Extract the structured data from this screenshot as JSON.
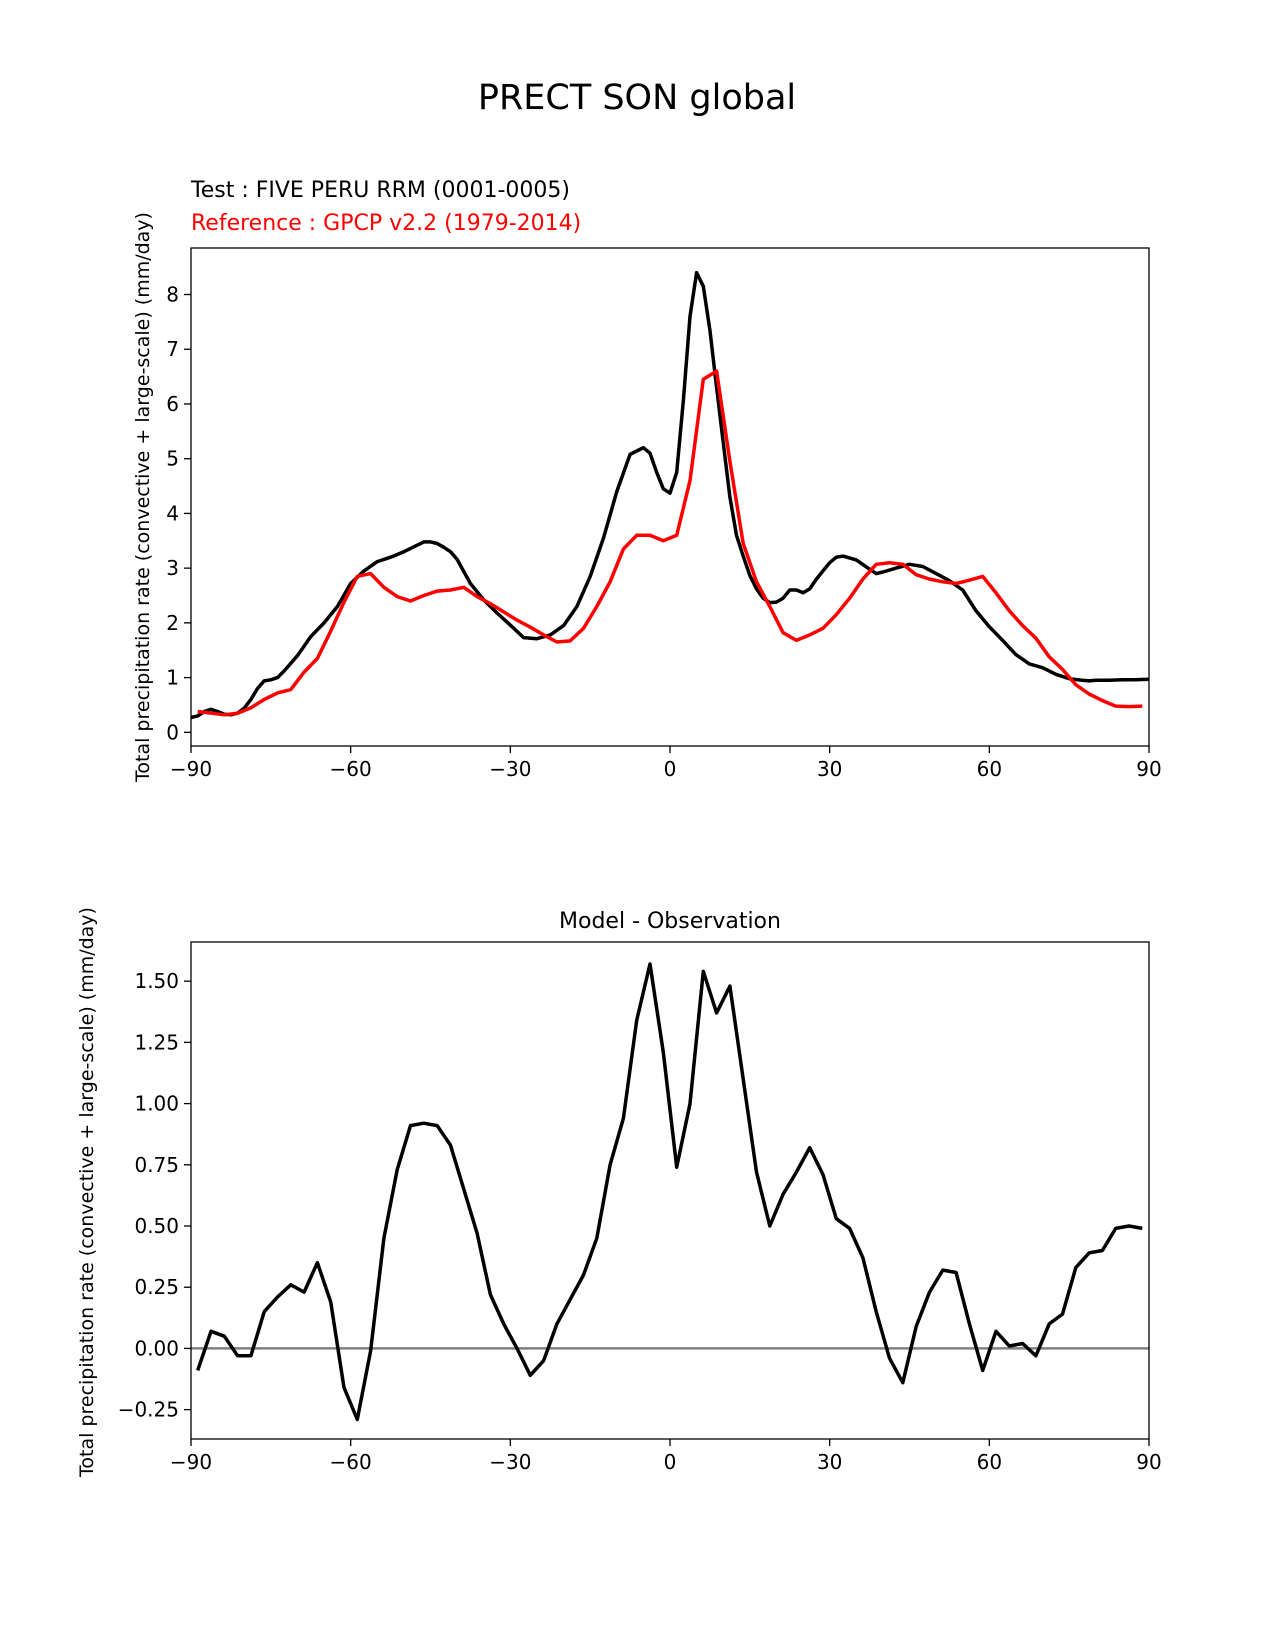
{
  "figure_title": "PRECT SON global",
  "chart_data": [
    {
      "type": "line",
      "test_label": "Test : FIVE PERU RRM (0001-0005)",
      "reference_label": "Reference : GPCP v2.2 (1979-2014)",
      "ylabel": "Total precipitation rate (convective + large-scale) (mm/day)",
      "xlim": [
        -90,
        90
      ],
      "ylim": [
        -0.25,
        8.85
      ],
      "xticks": [
        -90,
        -60,
        -30,
        0,
        30,
        60,
        90
      ],
      "xtick_labels": [
        "−90",
        "−60",
        "−30",
        "0",
        "30",
        "60",
        "90"
      ],
      "yticks": [
        0,
        1,
        2,
        3,
        4,
        5,
        6,
        7,
        8
      ],
      "ytick_labels": [
        "0",
        "1",
        "2",
        "3",
        "4",
        "5",
        "6",
        "7",
        "8"
      ],
      "series": [
        {
          "name": "Test : FIVE PERU RRM (0001-0005)",
          "color": "#000000",
          "x": [
            -90,
            -88.75,
            -87.5,
            -86.25,
            -85,
            -83.75,
            -82.5,
            -81.25,
            -80,
            -78.75,
            -77.5,
            -76.25,
            -75,
            -73.75,
            -72.5,
            -70,
            -67.5,
            -65,
            -62.5,
            -60,
            -57.5,
            -55,
            -52.5,
            -50,
            -47.5,
            -46.25,
            -45,
            -43.75,
            -42.5,
            -41.25,
            -40,
            -37.5,
            -35,
            -32.5,
            -30,
            -27.5,
            -25,
            -22.5,
            -20,
            -17.5,
            -15,
            -12.5,
            -10,
            -7.5,
            -5,
            -3.75,
            -2.5,
            -1.25,
            0,
            1.25,
            2.5,
            3.75,
            5,
            6.25,
            7.5,
            8.75,
            10,
            11.25,
            12.5,
            13.75,
            15,
            16.25,
            17.5,
            18.75,
            20,
            21.25,
            22.5,
            23.75,
            25,
            26.25,
            27.5,
            28.75,
            30,
            31.25,
            32.5,
            35,
            37.5,
            38.75,
            40,
            42.5,
            45,
            47.5,
            50,
            52.5,
            55,
            57.5,
            60,
            62.5,
            65,
            67.5,
            70,
            72.5,
            75,
            77.5,
            78.75,
            80,
            82.5,
            85,
            87.5,
            90
          ],
          "values": [
            0.27,
            0.3,
            0.38,
            0.42,
            0.38,
            0.33,
            0.32,
            0.35,
            0.44,
            0.6,
            0.8,
            0.94,
            0.96,
            1.0,
            1.12,
            1.4,
            1.75,
            2.0,
            2.3,
            2.72,
            2.95,
            3.12,
            3.2,
            3.3,
            3.42,
            3.48,
            3.48,
            3.45,
            3.38,
            3.3,
            3.16,
            2.72,
            2.42,
            2.18,
            1.96,
            1.73,
            1.71,
            1.78,
            1.95,
            2.3,
            2.85,
            3.55,
            4.4,
            5.08,
            5.2,
            5.1,
            4.75,
            4.45,
            4.37,
            4.75,
            6.05,
            7.6,
            8.4,
            8.15,
            7.35,
            6.3,
            5.3,
            4.3,
            3.6,
            3.22,
            2.87,
            2.62,
            2.45,
            2.37,
            2.38,
            2.45,
            2.6,
            2.6,
            2.55,
            2.62,
            2.8,
            2.95,
            3.1,
            3.2,
            3.22,
            3.15,
            2.98,
            2.9,
            2.93,
            3.0,
            3.07,
            3.03,
            2.9,
            2.77,
            2.6,
            2.22,
            1.93,
            1.68,
            1.42,
            1.25,
            1.18,
            1.06,
            0.98,
            0.95,
            0.94,
            0.95,
            0.95,
            0.96,
            0.96,
            0.97
          ]
        },
        {
          "name": "Reference : GPCP v2.2 (1979-2014)",
          "color": "#ff0000",
          "x": [
            -88.75,
            -86.25,
            -83.75,
            -81.25,
            -78.75,
            -76.25,
            -73.75,
            -71.25,
            -68.75,
            -66.25,
            -63.75,
            -61.25,
            -58.75,
            -56.25,
            -53.75,
            -51.25,
            -48.75,
            -46.25,
            -43.75,
            -41.25,
            -38.75,
            -36.25,
            -33.75,
            -31.25,
            -28.75,
            -26.25,
            -23.75,
            -21.25,
            -18.75,
            -16.25,
            -13.75,
            -11.25,
            -8.75,
            -6.25,
            -3.75,
            -1.25,
            1.25,
            3.75,
            6.25,
            8.75,
            11.25,
            13.75,
            16.25,
            18.75,
            21.25,
            23.75,
            26.25,
            28.75,
            31.25,
            33.75,
            36.25,
            38.75,
            41.25,
            43.75,
            46.25,
            48.75,
            51.25,
            53.75,
            56.25,
            58.75,
            61.25,
            63.75,
            66.25,
            68.75,
            71.25,
            73.75,
            76.25,
            78.75,
            81.25,
            83.75,
            86.25,
            88.75
          ],
          "values": [
            0.38,
            0.35,
            0.32,
            0.35,
            0.45,
            0.6,
            0.72,
            0.78,
            1.1,
            1.35,
            1.85,
            2.38,
            2.85,
            2.9,
            2.65,
            2.48,
            2.4,
            2.5,
            2.58,
            2.6,
            2.65,
            2.48,
            2.35,
            2.2,
            2.05,
            1.92,
            1.78,
            1.65,
            1.67,
            1.9,
            2.3,
            2.75,
            3.35,
            3.6,
            3.6,
            3.5,
            3.6,
            4.6,
            6.45,
            6.6,
            4.95,
            3.45,
            2.75,
            2.3,
            1.82,
            1.68,
            1.78,
            1.9,
            2.15,
            2.45,
            2.8,
            3.07,
            3.1,
            3.07,
            2.88,
            2.8,
            2.75,
            2.72,
            2.78,
            2.85,
            2.55,
            2.22,
            1.95,
            1.72,
            1.38,
            1.15,
            0.87,
            0.7,
            0.58,
            0.48,
            0.47,
            0.48
          ]
        }
      ]
    },
    {
      "type": "line",
      "title": "Model - Observation",
      "ylabel": "Total precipitation rate (convective + large-scale) (mm/day)",
      "xlim": [
        -90,
        90
      ],
      "ylim": [
        -0.37,
        1.66
      ],
      "xticks": [
        -90,
        -60,
        -30,
        0,
        30,
        60,
        90
      ],
      "xtick_labels": [
        "−90",
        "−60",
        "−30",
        "0",
        "30",
        "60",
        "90"
      ],
      "yticks": [
        -0.25,
        0,
        0.25,
        0.5,
        0.75,
        1.0,
        1.25,
        1.5
      ],
      "ytick_labels": [
        "−0.25",
        "0.00",
        "0.25",
        "0.50",
        "0.75",
        "1.00",
        "1.25",
        "1.50"
      ],
      "zero_line": 0,
      "series": [
        {
          "name": "Model - Observation",
          "color": "#000000",
          "x": [
            -88.75,
            -86.25,
            -83.75,
            -81.25,
            -78.75,
            -76.25,
            -73.75,
            -71.25,
            -68.75,
            -66.25,
            -63.75,
            -61.25,
            -58.75,
            -56.25,
            -53.75,
            -51.25,
            -48.75,
            -46.25,
            -43.75,
            -41.25,
            -38.75,
            -36.25,
            -33.75,
            -31.25,
            -28.75,
            -26.25,
            -23.75,
            -21.25,
            -18.75,
            -16.25,
            -13.75,
            -11.25,
            -8.75,
            -6.25,
            -3.75,
            -1.25,
            1.25,
            3.75,
            6.25,
            8.75,
            11.25,
            13.75,
            16.25,
            18.75,
            21.25,
            23.75,
            26.25,
            28.75,
            31.25,
            33.75,
            36.25,
            38.75,
            41.25,
            43.75,
            46.25,
            48.75,
            51.25,
            53.75,
            56.25,
            58.75,
            61.25,
            63.75,
            66.25,
            68.75,
            71.25,
            73.75,
            76.25,
            78.75,
            81.25,
            83.75,
            86.25,
            88.75
          ],
          "values": [
            -0.09,
            0.07,
            0.05,
            -0.03,
            -0.03,
            0.15,
            0.21,
            0.26,
            0.23,
            0.35,
            0.19,
            -0.16,
            -0.29,
            -0.01,
            0.45,
            0.73,
            0.91,
            0.92,
            0.91,
            0.83,
            0.65,
            0.47,
            0.22,
            0.1,
            0.0,
            -0.11,
            -0.05,
            0.1,
            0.2,
            0.3,
            0.45,
            0.75,
            0.94,
            1.34,
            1.57,
            1.21,
            0.74,
            1.0,
            1.54,
            1.37,
            1.48,
            1.1,
            0.72,
            0.5,
            0.63,
            0.72,
            0.82,
            0.71,
            0.53,
            0.49,
            0.37,
            0.15,
            -0.04,
            -0.14,
            0.09,
            0.23,
            0.32,
            0.31,
            0.1,
            -0.09,
            0.07,
            0.01,
            0.02,
            -0.03,
            0.1,
            0.14,
            0.33,
            0.39,
            0.4,
            0.49,
            0.5,
            0.49
          ]
        }
      ]
    }
  ]
}
